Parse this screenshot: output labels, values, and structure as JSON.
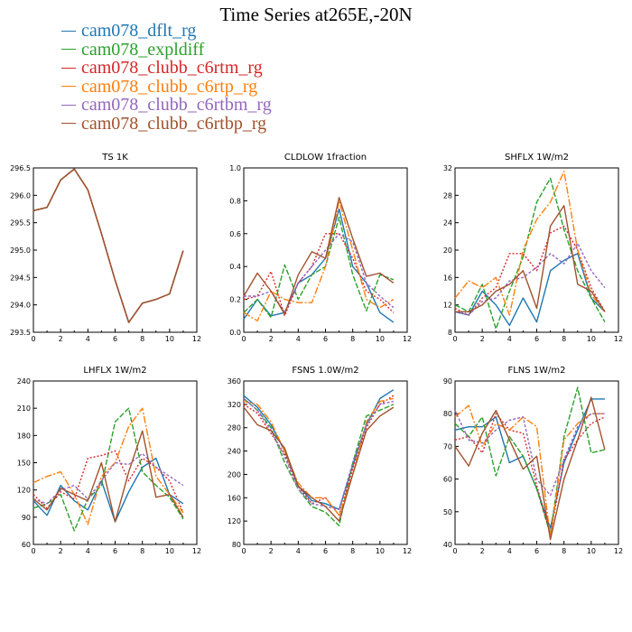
{
  "title": "Time Series at265E,-20N",
  "legend": [
    {
      "name": "cam078_dflt_rg",
      "color": "#1f77b4"
    },
    {
      "name": "cam078_expldiff",
      "color": "#2ca02c"
    },
    {
      "name": "cam078_clubb_c6rtm_rg",
      "color": "#d62728"
    },
    {
      "name": "cam078_clubb_c6rtp_rg",
      "color": "#ff7f0e"
    },
    {
      "name": "cam078_clubb_c6rtbm_rg",
      "color": "#9467bd"
    },
    {
      "name": "cam078_clubb_c6rtbp_rg",
      "color": "#a0522d"
    }
  ],
  "chart_data": [
    {
      "type": "line",
      "title": "TS   1K",
      "x": [
        0,
        1,
        2,
        3,
        4,
        5,
        6,
        7,
        8,
        9,
        10,
        11
      ],
      "xlim": [
        0,
        12
      ],
      "xticks": [
        0,
        2,
        4,
        6,
        8,
        10,
        12
      ],
      "ylim": [
        293.5,
        296.5
      ],
      "yticks": [
        "293.5",
        "294.0",
        "294.5",
        "295.0",
        "295.5",
        "296.0",
        "296.5"
      ],
      "series": [
        {
          "values": [
            295.72,
            295.78,
            296.28,
            296.48,
            296.1,
            295.3,
            294.45,
            293.68,
            294.03,
            294.1,
            294.2,
            294.99
          ]
        },
        {
          "values": [
            295.72,
            295.78,
            296.28,
            296.48,
            296.1,
            295.3,
            294.45,
            293.68,
            294.03,
            294.1,
            294.2,
            294.99
          ]
        },
        {
          "values": [
            295.72,
            295.78,
            296.28,
            296.48,
            296.1,
            295.3,
            294.45,
            293.68,
            294.03,
            294.1,
            294.2,
            294.99
          ]
        },
        {
          "values": [
            295.72,
            295.78,
            296.28,
            296.48,
            296.1,
            295.3,
            294.45,
            293.68,
            294.03,
            294.1,
            294.2,
            294.99
          ]
        },
        {
          "values": [
            295.72,
            295.78,
            296.28,
            296.48,
            296.1,
            295.3,
            294.45,
            293.68,
            294.03,
            294.1,
            294.2,
            294.99
          ]
        },
        {
          "values": [
            295.72,
            295.78,
            296.28,
            296.48,
            296.1,
            295.3,
            294.45,
            293.68,
            294.03,
            294.1,
            294.2,
            294.99
          ]
        }
      ]
    },
    {
      "type": "line",
      "title": "CLDLOW   1fraction",
      "x": [
        0,
        1,
        2,
        3,
        4,
        5,
        6,
        7,
        8,
        9,
        10,
        11
      ],
      "xlim": [
        0,
        12
      ],
      "xticks": [
        0,
        2,
        4,
        6,
        8,
        10,
        12
      ],
      "ylim": [
        0,
        1
      ],
      "yticks": [
        "0.0",
        "0.2",
        "0.4",
        "0.6",
        "0.8",
        "1.0"
      ],
      "series": [
        {
          "values": [
            0.08,
            0.2,
            0.1,
            0.12,
            0.3,
            0.35,
            0.45,
            0.75,
            0.4,
            0.3,
            0.12,
            0.06
          ]
        },
        {
          "values": [
            0.12,
            0.2,
            0.09,
            0.41,
            0.2,
            0.35,
            0.4,
            0.7,
            0.35,
            0.13,
            0.35,
            0.32
          ]
        },
        {
          "values": [
            0.2,
            0.22,
            0.37,
            0.1,
            0.3,
            0.4,
            0.6,
            0.6,
            0.45,
            0.25,
            0.2,
            0.12
          ]
        },
        {
          "values": [
            0.12,
            0.07,
            0.25,
            0.2,
            0.18,
            0.18,
            0.4,
            0.8,
            0.5,
            0.2,
            0.15,
            0.2
          ]
        },
        {
          "values": [
            0.22,
            0.22,
            0.25,
            0.12,
            0.3,
            0.4,
            0.5,
            0.6,
            0.55,
            0.3,
            0.22,
            0.15
          ]
        },
        {
          "values": [
            0.22,
            0.36,
            0.25,
            0.11,
            0.35,
            0.49,
            0.45,
            0.82,
            0.57,
            0.34,
            0.36,
            0.3
          ]
        }
      ]
    },
    {
      "type": "line",
      "title": "SHFLX   1W/m2",
      "x": [
        0,
        1,
        2,
        3,
        4,
        5,
        6,
        7,
        8,
        9,
        10,
        11
      ],
      "xlim": [
        0,
        12
      ],
      "xticks": [
        0,
        2,
        4,
        6,
        8,
        10,
        12
      ],
      "ylim": [
        8,
        32
      ],
      "yticks": [
        "8",
        "12",
        "16",
        "20",
        "24",
        "28",
        "32"
      ],
      "series": [
        {
          "values": [
            11,
            10.5,
            14,
            12,
            9,
            13,
            9.5,
            17,
            18.5,
            19.5,
            13,
            11
          ]
        },
        {
          "values": [
            12,
            11,
            15,
            8.5,
            14,
            19,
            27,
            30.5,
            23,
            17,
            13,
            9.5
          ]
        },
        {
          "values": [
            11.5,
            10.5,
            13,
            14.5,
            19.5,
            19.5,
            17,
            22.5,
            23.5,
            20,
            14.5,
            11
          ]
        },
        {
          "values": [
            13,
            15.5,
            14.5,
            16,
            10.5,
            20,
            24.5,
            27,
            31.5,
            20,
            13.5,
            11
          ]
        },
        {
          "values": [
            11,
            10.5,
            12.5,
            13,
            15.5,
            16,
            17.5,
            19.5,
            18,
            21,
            17,
            14.5
          ]
        },
        {
          "values": [
            11,
            11,
            12,
            14,
            15,
            17,
            11.5,
            23.5,
            26.5,
            15,
            14,
            11
          ]
        }
      ]
    },
    {
      "type": "line",
      "title": "LHFLX   1W/m2",
      "x": [
        0,
        1,
        2,
        3,
        4,
        5,
        6,
        7,
        8,
        9,
        10,
        11
      ],
      "xlim": [
        0,
        12
      ],
      "xticks": [
        0,
        2,
        4,
        6,
        8,
        10,
        12
      ],
      "ylim": [
        60,
        240
      ],
      "yticks": [
        "60",
        "90",
        "120",
        "150",
        "180",
        "210",
        "240"
      ],
      "series": [
        {
          "values": [
            108,
            92,
            125,
            108,
            98,
            130,
            85,
            118,
            145,
            155,
            115,
            105
          ]
        },
        {
          "values": [
            100,
            105,
            115,
            75,
            110,
            125,
            195,
            210,
            140,
            125,
            112,
            88
          ]
        },
        {
          "values": [
            115,
            100,
            118,
            110,
            155,
            158,
            163,
            130,
            155,
            145,
            130,
            95
          ]
        },
        {
          "values": [
            128,
            135,
            140,
            115,
            82,
            135,
            150,
            190,
            210,
            135,
            115,
            95
          ]
        },
        {
          "values": [
            110,
            105,
            120,
            125,
            110,
            130,
            150,
            148,
            160,
            145,
            135,
            125
          ]
        },
        {
          "values": [
            110,
            98,
            122,
            115,
            108,
            150,
            85,
            140,
            185,
            112,
            115,
            90
          ]
        }
      ]
    },
    {
      "type": "line",
      "title": "FSNS   1.0W/m2",
      "x": [
        0,
        1,
        2,
        3,
        4,
        5,
        6,
        7,
        8,
        9,
        10,
        11
      ],
      "xlim": [
        0,
        12
      ],
      "xticks": [
        0,
        2,
        4,
        6,
        8,
        10,
        12
      ],
      "ylim": [
        80,
        360
      ],
      "yticks": [
        "80",
        "120",
        "160",
        "200",
        "240",
        "280",
        "320",
        "360"
      ],
      "series": [
        {
          "values": [
            335,
            315,
            285,
            240,
            180,
            155,
            150,
            140,
            215,
            285,
            330,
            345
          ]
        },
        {
          "values": [
            330,
            310,
            280,
            220,
            175,
            145,
            135,
            112,
            220,
            300,
            310,
            320
          ]
        },
        {
          "values": [
            320,
            305,
            270,
            235,
            180,
            150,
            160,
            130,
            210,
            280,
            320,
            335
          ]
        },
        {
          "values": [
            325,
            320,
            290,
            240,
            185,
            160,
            160,
            130,
            200,
            290,
            325,
            330
          ]
        },
        {
          "values": [
            330,
            310,
            275,
            230,
            175,
            150,
            145,
            140,
            220,
            285,
            320,
            325
          ]
        },
        {
          "values": [
            315,
            285,
            275,
            245,
            180,
            160,
            145,
            120,
            200,
            275,
            300,
            315
          ]
        }
      ]
    },
    {
      "type": "line",
      "title": "FLNS   1W/m2",
      "x": [
        0,
        1,
        2,
        3,
        4,
        5,
        6,
        7,
        8,
        9,
        10,
        11
      ],
      "xlim": [
        0,
        12
      ],
      "xticks": [
        0,
        2,
        4,
        6,
        8,
        10,
        12
      ],
      "ylim": [
        40,
        90
      ],
      "yticks": [
        "40",
        "50",
        "60",
        "70",
        "80",
        "90"
      ],
      "series": [
        {
          "values": [
            75,
            76,
            76,
            79,
            65,
            67,
            57,
            45,
            65,
            75,
            84.5,
            84.5
          ]
        },
        {
          "values": [
            77,
            73,
            79,
            61,
            73,
            67,
            57,
            43,
            73,
            88,
            68,
            69
          ]
        },
        {
          "values": [
            72,
            73,
            68,
            80,
            75,
            74,
            58,
            43,
            66,
            72,
            77,
            79
          ]
        },
        {
          "values": [
            79,
            82.5,
            70,
            77,
            75,
            79,
            76,
            42,
            72,
            77,
            80,
            80
          ]
        },
        {
          "values": [
            81,
            72,
            71,
            75,
            78,
            79,
            60,
            55,
            66,
            76,
            80,
            80
          ]
        },
        {
          "values": [
            70,
            64,
            74,
            81,
            72,
            63,
            67,
            41.5,
            60,
            72,
            85,
            69
          ]
        }
      ]
    }
  ]
}
